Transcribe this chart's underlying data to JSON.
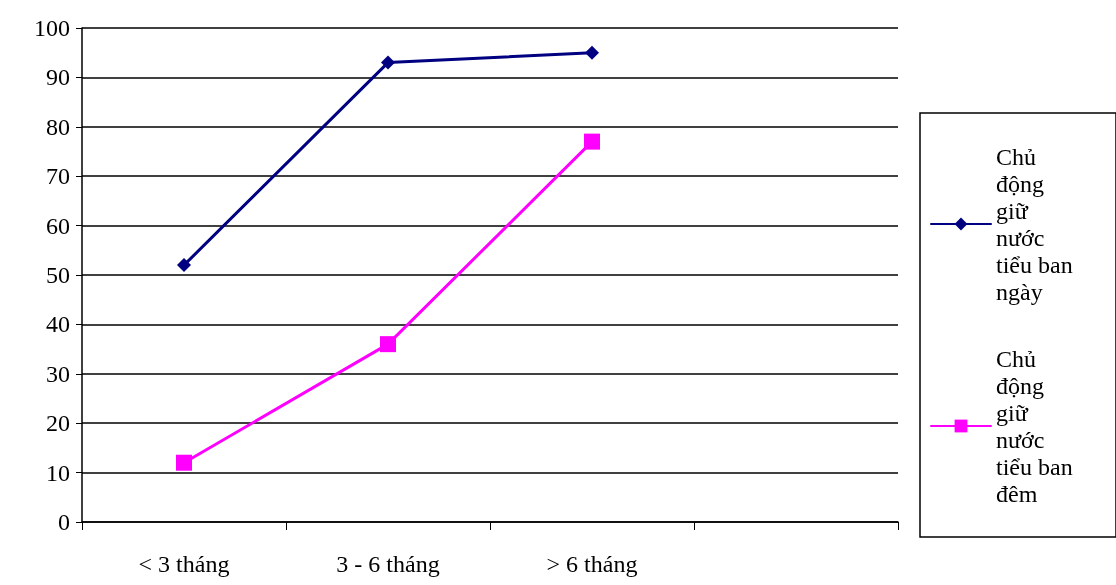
{
  "chart_data": {
    "type": "line",
    "categories": [
      "< 3 tháng",
      "3 - 6 tháng",
      "> 6 tháng",
      null
    ],
    "series": [
      {
        "name": "Chủ động giữ nước tiểu ban ngày",
        "color": "#000080",
        "marker": "diamond",
        "values": [
          52,
          93,
          95,
          null
        ]
      },
      {
        "name": "Chủ động giữ nước tiểu ban đêm",
        "color": "#ff00ff",
        "marker": "square",
        "values": [
          12,
          36,
          77,
          null
        ]
      }
    ],
    "ylim": [
      0,
      100
    ],
    "yticks": [
      0,
      10,
      20,
      30,
      40,
      50,
      60,
      70,
      80,
      90,
      100
    ],
    "grid": "y",
    "legend": "right",
    "line_style": "solid"
  }
}
